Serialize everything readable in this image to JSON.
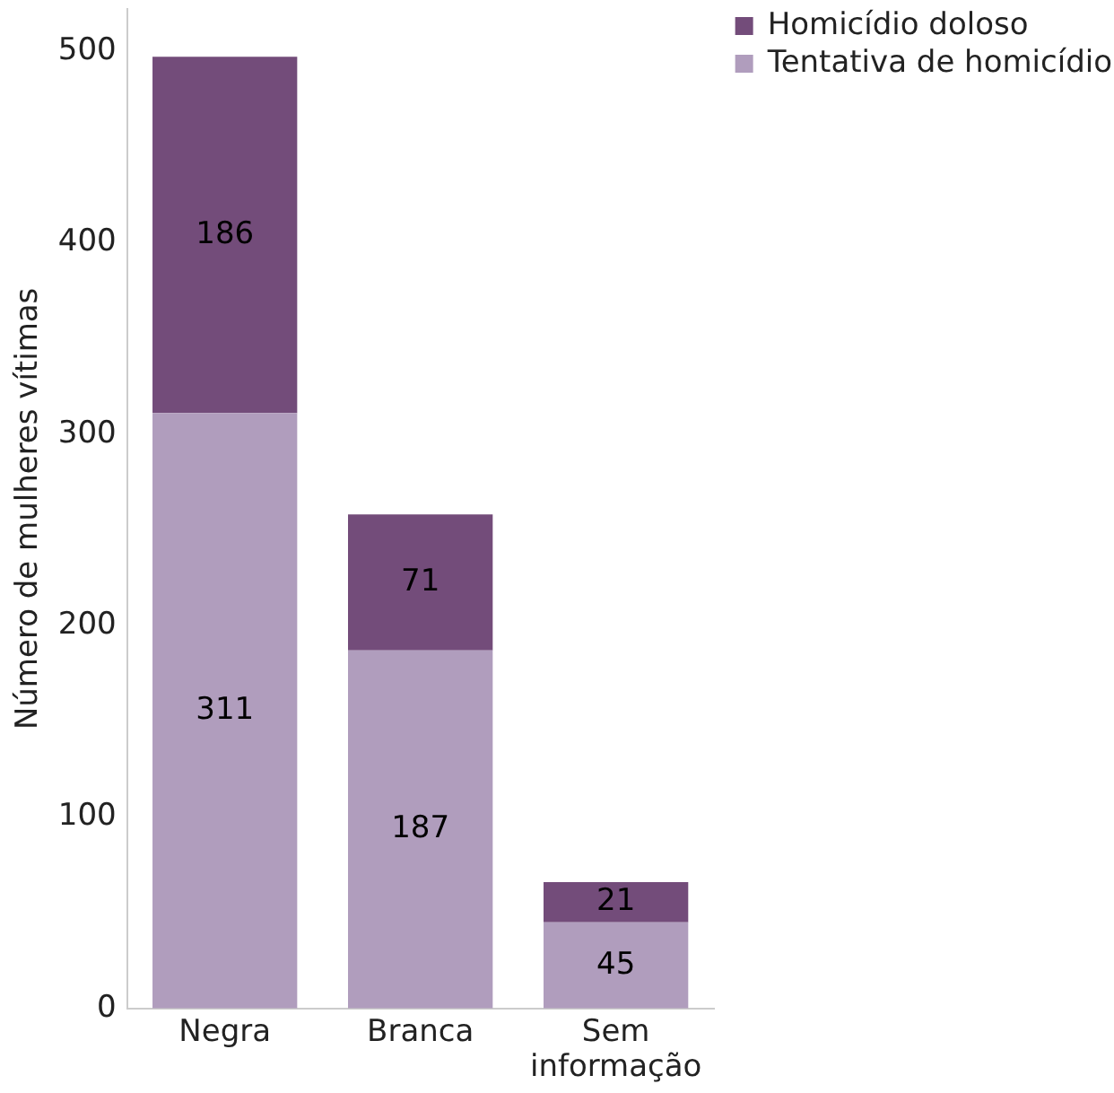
{
  "chart_data": {
    "type": "bar",
    "stacked": true,
    "categories": [
      "Negra",
      "Branca",
      "Sem informação"
    ],
    "series": [
      {
        "name": "Tentativa de homicídio",
        "color": "#b09dbd",
        "values": [
          311,
          187,
          45
        ]
      },
      {
        "name": "Homicídio doloso",
        "color": "#734c7a",
        "values": [
          186,
          71,
          21
        ]
      }
    ],
    "ylabel": "Número de mulheres vítimas",
    "ylim": [
      0,
      522
    ],
    "yticks": [
      0,
      100,
      200,
      300,
      400,
      500
    ],
    "data_labels": true,
    "legend": "top right",
    "grid": false
  }
}
